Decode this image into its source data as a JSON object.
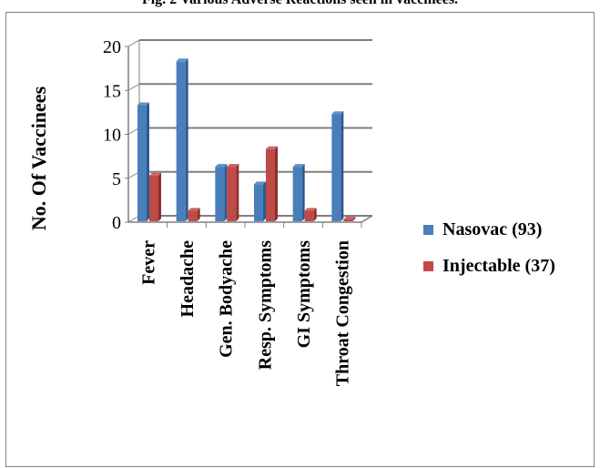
{
  "figure": {
    "caption": "Fig. 2 Various Adverse Reactions seen in vaccinees."
  },
  "colors": {
    "nasovac": "#4a7ebb",
    "nasovac_side": "#2d5a8e",
    "injectable": "#be4b48",
    "injectable_side": "#8c2e2c",
    "axis": "#7f7f7f"
  },
  "chart_data": {
    "type": "bar",
    "title": "",
    "xlabel": "",
    "ylabel": "No. Of Vaccinees",
    "ylim": [
      0,
      20
    ],
    "yticks": [
      0,
      5,
      10,
      15,
      20
    ],
    "categories": [
      "Fever",
      "Headache",
      "Gen. Bodyache",
      "Resp. Symptoms",
      "GI Symptoms",
      "Throat Congestion"
    ],
    "series": [
      {
        "name": "Nasovac (93)",
        "values": [
          13,
          18,
          6,
          4,
          6,
          12
        ]
      },
      {
        "name": "Injectable (37)",
        "values": [
          5,
          1,
          6,
          8,
          1,
          0
        ]
      }
    ],
    "grid": true,
    "legend": "right"
  }
}
